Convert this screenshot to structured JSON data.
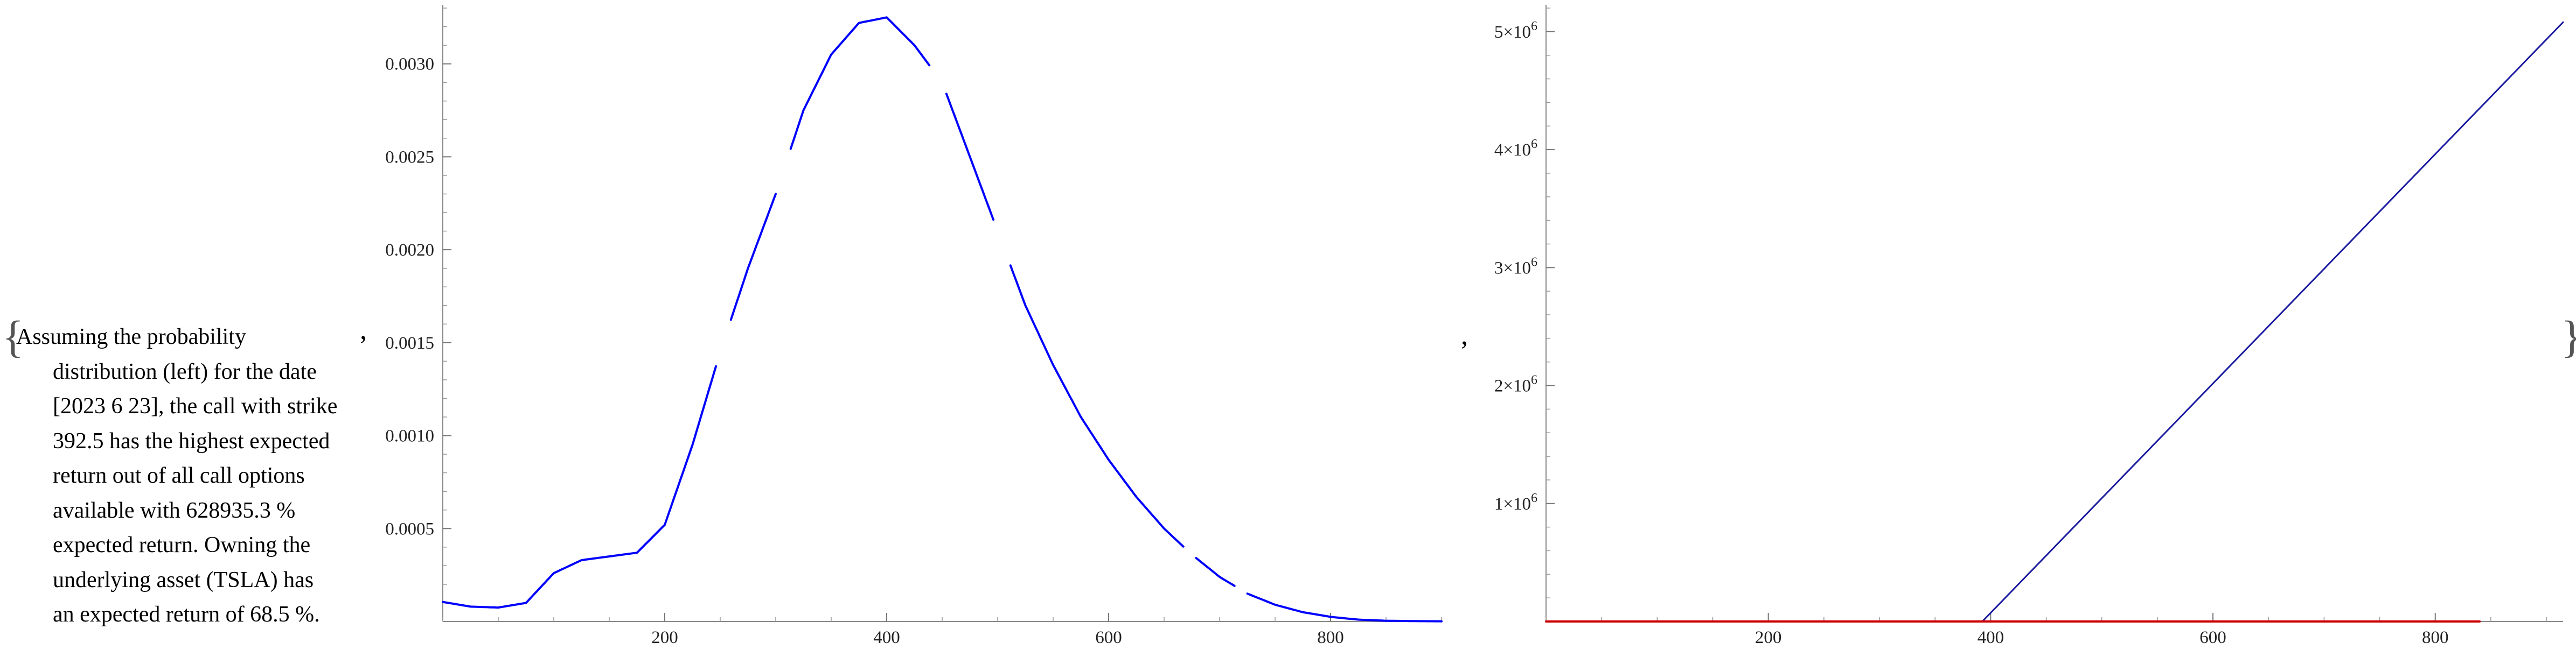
{
  "text": {
    "brace_open": "{",
    "brace_close": "}",
    "separator": ",",
    "description_first": "Assuming the probability",
    "description_rest": [
      "distribution (left) for the date",
      "[2023 6 23], the call with strike",
      "392.5 has the highest expected",
      "return out of all call options",
      "available with 628935.3 %",
      "expected return. Owning the",
      "underlying asset (TSLA) has",
      "an expected return of 68.5 %."
    ]
  },
  "chart_data": [
    {
      "type": "line",
      "title": "",
      "xlabel": "",
      "ylabel": "",
      "xlim": [
        0,
        900
      ],
      "ylim": [
        0,
        0.0033
      ],
      "grid": false,
      "x_ticks": [
        200,
        400,
        600,
        800
      ],
      "x_tick_labels": [
        "200",
        "400",
        "600",
        "800"
      ],
      "y_ticks": [
        0.0005,
        0.001,
        0.0015,
        0.002,
        0.0025,
        0.003
      ],
      "y_tick_labels": [
        "0.0005",
        "0.0010",
        "0.0015",
        "0.0020",
        "0.0025",
        "0.0030"
      ],
      "series": [
        {
          "color": "#0000ff",
          "gaps": [
            [
              247,
              258
            ],
            [
              300,
              312
            ],
            [
              440,
              452
            ],
            [
              498,
              510
            ],
            [
              668,
              678
            ],
            [
              715,
              725
            ]
          ],
          "x": [
            0,
            25,
            50,
            75,
            100,
            125,
            150,
            175,
            200,
            225,
            250,
            275,
            300,
            325,
            350,
            375,
            400,
            425,
            450,
            475,
            500,
            525,
            550,
            575,
            600,
            625,
            650,
            675,
            700,
            725,
            750,
            775,
            800,
            825,
            850,
            875,
            900
          ],
          "values": [
            0.000105,
            8e-05,
            7.5e-05,
            0.0001,
            0.00026,
            0.00033,
            0.00035,
            0.00037,
            0.00052,
            0.00095,
            0.00145,
            0.0019,
            0.0023,
            0.00275,
            0.00305,
            0.00322,
            0.00325,
            0.0031,
            0.0029,
            0.0025,
            0.0021,
            0.0017,
            0.00138,
            0.0011,
            0.00087,
            0.00067,
            0.0005,
            0.00036,
            0.00024,
            0.00015,
            9e-05,
            5e-05,
            2.5e-05,
            1e-05,
            4e-06,
            2e-06,
            1e-06
          ]
        }
      ]
    },
    {
      "type": "line",
      "title": "",
      "xlabel": "",
      "ylabel": "",
      "xlim": [
        0,
        915
      ],
      "ylim": [
        0,
        5200000
      ],
      "grid": false,
      "x_ticks": [
        200,
        400,
        600,
        800
      ],
      "x_tick_labels": [
        "200",
        "400",
        "600",
        "800"
      ],
      "y_ticks": [
        1000000,
        2000000,
        3000000,
        4000000,
        5000000
      ],
      "y_tick_labels": [
        "1×10^6",
        "2×10^6",
        "3×10^6",
        "4×10^6",
        "5×10^6"
      ],
      "series": [
        {
          "color": "#1a1aa0",
          "x": [
            0,
            392.5,
            915
          ],
          "values": [
            0,
            0,
            5080000
          ]
        },
        {
          "color": "#cc0000",
          "x": [
            0,
            840
          ],
          "values": [
            0,
            0
          ]
        }
      ]
    }
  ]
}
